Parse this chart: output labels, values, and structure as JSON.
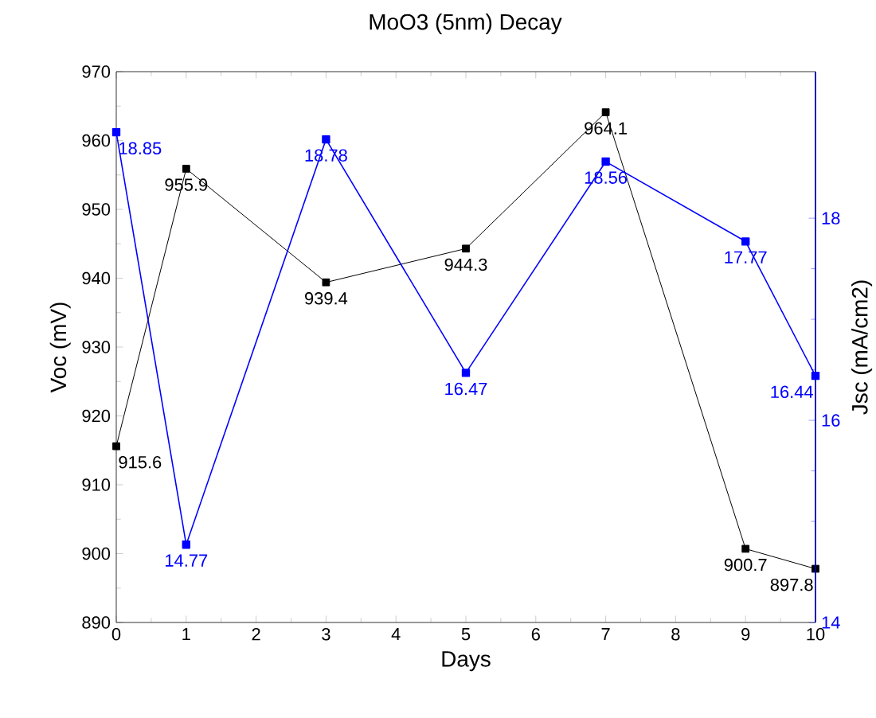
{
  "chart_data": {
    "type": "line",
    "title": "MoO3 (5nm) Decay",
    "xlabel": "Days",
    "ylabel": "Voc (mV)",
    "y2label": "Jsc (mA/cm2)",
    "x": [
      0,
      1,
      3,
      5,
      7,
      9,
      10
    ],
    "series": [
      {
        "color": "#000000",
        "values": [
          915.6,
          955.9,
          939.4,
          944.3,
          964.1,
          900.7,
          897.8
        ]
      },
      {
        "color": "#0000ff",
        "axis": "y2",
        "values": [
          18.85,
          14.77,
          18.78,
          16.47,
          18.56,
          17.77,
          16.44
        ]
      }
    ],
    "xlim": [
      0,
      10
    ],
    "xticks": [
      0,
      1,
      2,
      3,
      4,
      5,
      6,
      7,
      8,
      9,
      10
    ],
    "ylim": [
      890,
      970
    ],
    "yticks": [
      890,
      900,
      910,
      920,
      930,
      940,
      950,
      960,
      970
    ],
    "y2lim": [
      14,
      19.45
    ],
    "y2ticks": [
      14,
      16,
      18
    ],
    "marker": "square",
    "line_style": "solid",
    "data_labels": true,
    "grid": false
  }
}
